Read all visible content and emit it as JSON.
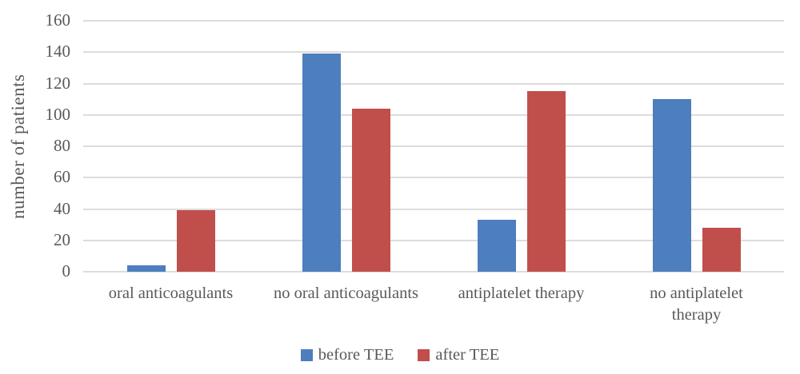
{
  "chart_data": {
    "type": "bar",
    "title": "",
    "xlabel": "",
    "ylabel": "number of patients",
    "ylim": [
      0,
      160
    ],
    "ytick_step": 20,
    "grid": true,
    "legend_position": "bottom-center",
    "categories": [
      "oral anticoagulants",
      "no oral anticoagulants",
      "antiplatelet therapy",
      "no antiplatelet\ntherapy"
    ],
    "series": [
      {
        "name": "before TEE",
        "color": "#4d7ebe",
        "values": [
          4,
          139,
          33,
          110
        ]
      },
      {
        "name": "after TEE",
        "color": "#c04f4c",
        "values": [
          39,
          104,
          115,
          28
        ]
      }
    ],
    "colors": {
      "text": "#595959",
      "gridline": "#dcdcdc",
      "background": "#ffffff"
    }
  }
}
